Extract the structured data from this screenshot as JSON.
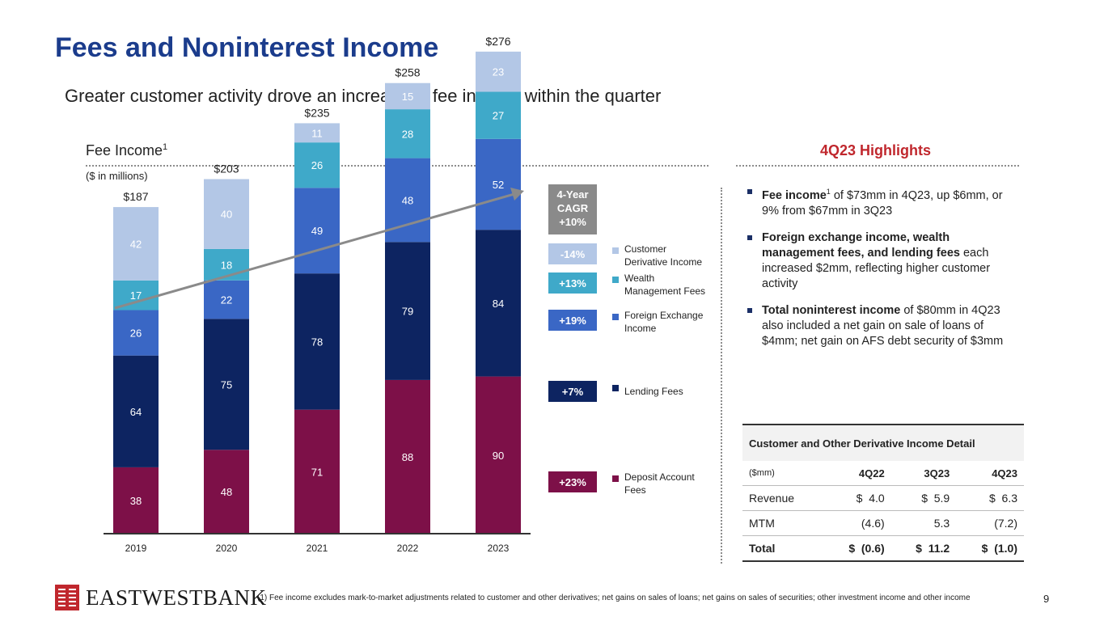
{
  "header": {
    "title": "Fees and Noninterest Income",
    "subtitle": "Greater customer activity drove an increase in fee income within the quarter"
  },
  "fee_section": {
    "heading": "Fee Income",
    "heading_sup": "1",
    "units": "($ in millions)"
  },
  "chart_data": {
    "type": "bar",
    "stacked": true,
    "title": "Fee Income",
    "categories": [
      "2019",
      "2020",
      "2021",
      "2022",
      "2023"
    ],
    "totals": [
      "$187",
      "$203",
      "$235",
      "$258",
      "$276"
    ],
    "series": [
      {
        "name": "Deposit Account Fees",
        "color": "#7d1048",
        "cagr": "+23%",
        "values": [
          38,
          48,
          71,
          88,
          90
        ]
      },
      {
        "name": "Lending Fees",
        "color": "#0d2461",
        "cagr": "+7%",
        "values": [
          64,
          75,
          78,
          79,
          84
        ]
      },
      {
        "name": "Foreign Exchange Income",
        "color": "#3a67c5",
        "cagr": "+19%",
        "values": [
          26,
          22,
          49,
          48,
          52
        ]
      },
      {
        "name": "Wealth Management Fees",
        "color": "#3fa9c9",
        "cagr": "+13%",
        "values": [
          17,
          18,
          26,
          28,
          27
        ]
      },
      {
        "name": "Customer Derivative Income",
        "color": "#b3c7e6",
        "cagr": "-14%",
        "values": [
          42,
          40,
          11,
          15,
          23
        ]
      }
    ],
    "cagr_header": [
      "4-Year",
      "CAGR",
      "+10%"
    ],
    "ylim": [
      0,
      300
    ]
  },
  "highlights": {
    "title": "4Q23 Highlights",
    "bullets": [
      {
        "bold": "Fee income",
        "sup": "1",
        "rest": " of $73mm in 4Q23, up $6mm, or 9% from $67mm in 3Q23"
      },
      {
        "bold": "Foreign exchange income, wealth management fees, and lending fees",
        "sup": "",
        "rest": " each increased $2mm, reflecting higher customer activity"
      },
      {
        "bold": "Total noninterest income",
        "sup": "",
        "rest": " of $80mm in 4Q23 also included a net gain on sale of loans of $4mm; net gain on AFS debt security of $3mm"
      }
    ]
  },
  "derivative_table": {
    "title": "Customer and Other Derivative Income Detail",
    "unit": "($mm)",
    "columns": [
      "4Q22",
      "3Q23",
      "4Q23"
    ],
    "rows": [
      {
        "label": "Revenue",
        "values": [
          "$  4.0",
          "$  5.9",
          "$  6.3"
        ]
      },
      {
        "label": "MTM",
        "values": [
          "(4.6)",
          "5.3",
          "(7.2)"
        ]
      }
    ],
    "total": {
      "label": "Total",
      "values": [
        "$  (0.6)",
        "$  11.2",
        "$  (1.0)"
      ]
    }
  },
  "footer": {
    "logo_text": "EASTWESTBANK",
    "footnote": "(1) Fee income excludes mark-to-market adjustments related to customer and other derivatives; net gains on sales of loans; net gains on sales of securities; other investment income and other income",
    "page_number": "9"
  },
  "colors": {
    "title": "#1b3c8c",
    "highlight_title": "#c0272d",
    "cagr_box_gray": "#8a8a8a",
    "logo_red": "#c0272d"
  }
}
